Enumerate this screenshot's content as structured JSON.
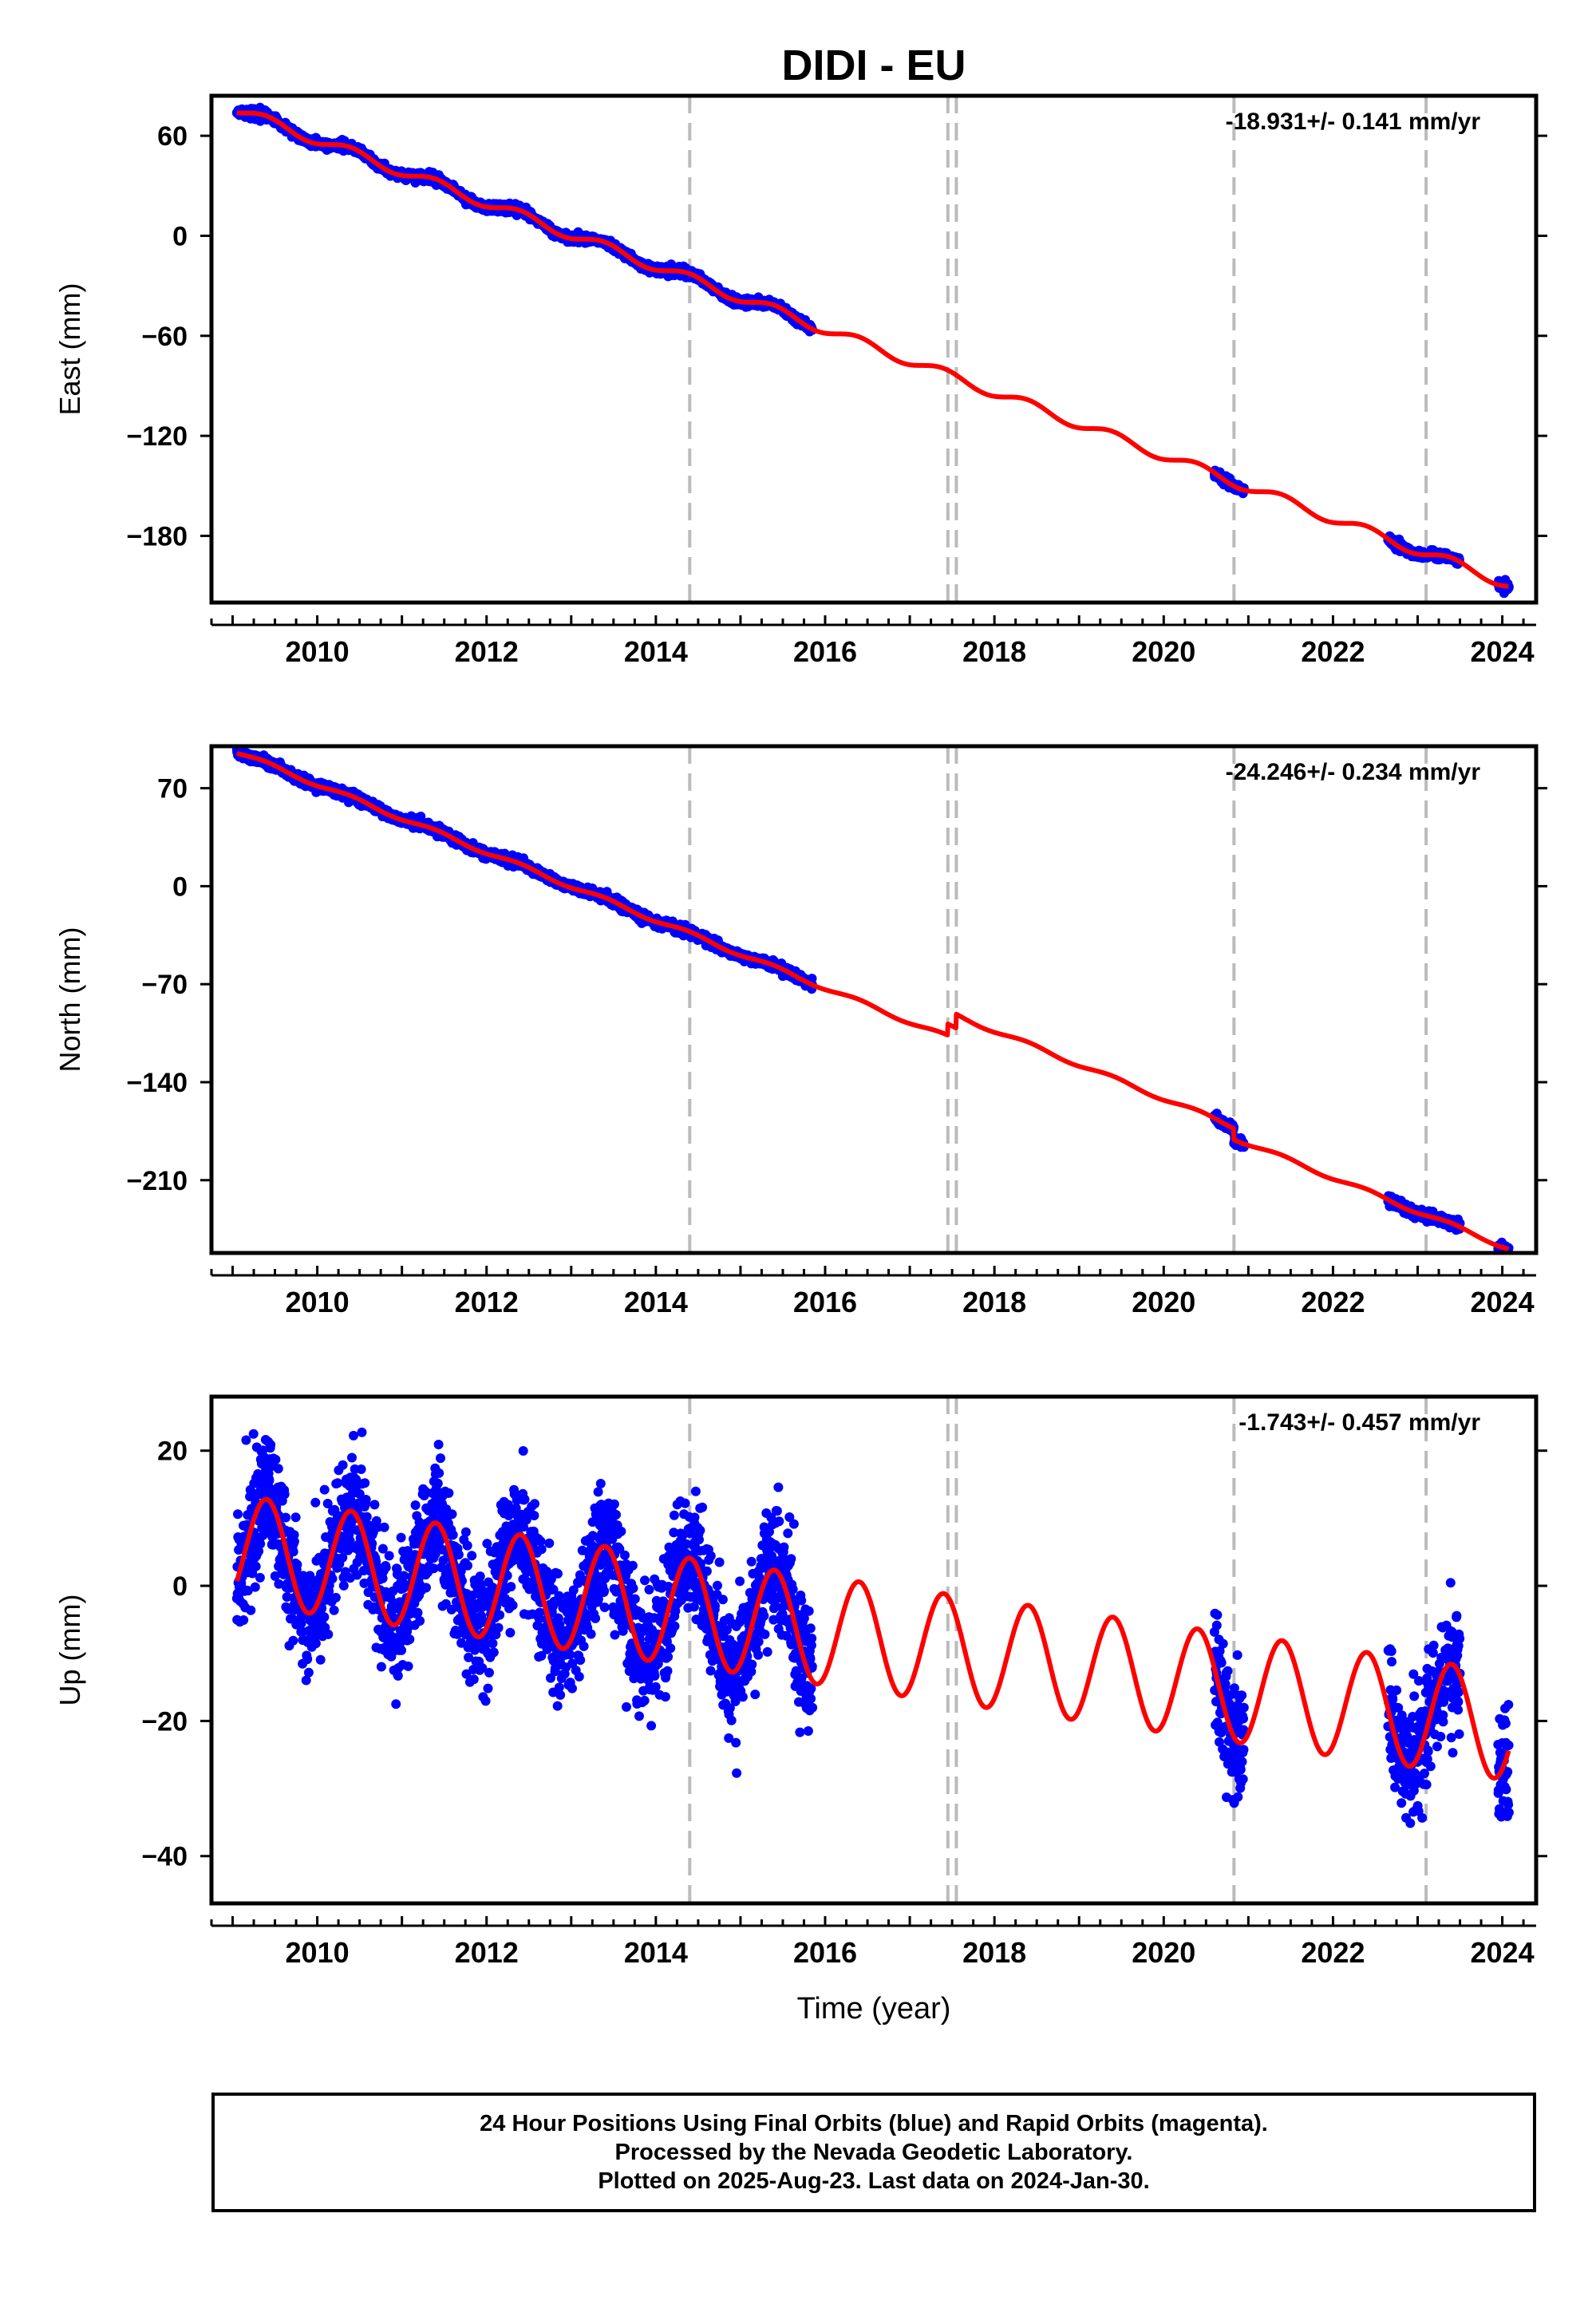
{
  "title": "DIDI - EU",
  "colors": {
    "observations": "#0000ff",
    "model": "#ff0000",
    "breaks": "#bbbbbb",
    "frame": "#000000"
  },
  "chart_data": [
    {
      "type": "scatter",
      "component": "East",
      "ylabel": "East (mm)",
      "xlabel": "",
      "rate_label": "-18.931+/- 0.141 mm/yr",
      "xlim": [
        2008.75,
        2024.4
      ],
      "ylim": [
        -220,
        84
      ],
      "yticks": [
        60,
        0,
        -60,
        -120,
        -180
      ],
      "xticks": [
        2010,
        2012,
        2014,
        2016,
        2018,
        2020,
        2022,
        2024
      ],
      "breaks": [
        2014.4,
        2017.45,
        2017.55,
        2020.83,
        2023.1
      ],
      "observation_intervals": [
        [
          2009.05,
          2015.85
        ],
        [
          2020.6,
          2020.95
        ],
        [
          2022.65,
          2023.5
        ],
        [
          2023.95,
          2024.08
        ]
      ],
      "model": {
        "intercept_2009": 76.5,
        "rate_mm_per_yr": -18.931,
        "annual_amplitude": 3.0,
        "steps": []
      },
      "noise_mm": 1.2
    },
    {
      "type": "scatter",
      "component": "North",
      "ylabel": "North (mm)",
      "xlabel": "",
      "rate_label": "-24.246+/- 0.234 mm/yr",
      "xlim": [
        2008.75,
        2024.4
      ],
      "ylim": [
        -262,
        100
      ],
      "yticks": [
        70,
        0,
        -70,
        -140,
        -210
      ],
      "xticks": [
        2010,
        2012,
        2014,
        2016,
        2018,
        2020,
        2022,
        2024
      ],
      "breaks": [
        2014.4,
        2017.45,
        2017.55,
        2020.83,
        2023.1
      ],
      "observation_intervals": [
        [
          2009.05,
          2015.85
        ],
        [
          2020.6,
          2020.95
        ],
        [
          2022.65,
          2023.5
        ],
        [
          2023.95,
          2024.08
        ]
      ],
      "model": {
        "intercept_2009": 97,
        "rate_mm_per_yr": -24.246,
        "annual_amplitude": 1.5,
        "steps": [
          [
            2017.45,
            8
          ],
          [
            2017.55,
            10
          ],
          [
            2020.83,
            -8
          ]
        ]
      },
      "noise_mm": 1.6
    },
    {
      "type": "scatter",
      "component": "Up",
      "ylabel": "Up (mm)",
      "xlabel": "Time (year)",
      "rate_label": "-1.743+/- 0.457 mm/yr",
      "xlim": [
        2008.75,
        2024.4
      ],
      "ylim": [
        -47,
        28
      ],
      "yticks": [
        20,
        0,
        -20,
        -40
      ],
      "xticks": [
        2010,
        2012,
        2014,
        2016,
        2018,
        2020,
        2022,
        2024
      ],
      "breaks": [
        2014.4,
        2017.45,
        2017.55,
        2020.83,
        2023.1
      ],
      "observation_intervals": [
        [
          2009.05,
          2015.85
        ],
        [
          2020.6,
          2020.95
        ],
        [
          2022.65,
          2023.5
        ],
        [
          2023.95,
          2024.08
        ]
      ],
      "model": {
        "intercept_2009": 5.5,
        "rate_mm_per_yr": -1.743,
        "annual_amplitude": 8.0,
        "steps": []
      },
      "noise_mm": 4.5
    }
  ],
  "footer": {
    "line1": "24 Hour Positions Using Final Orbits (blue) and Rapid Orbits (magenta).",
    "line2": "Processed by the Nevada Geodetic Laboratory.",
    "line3": "Plotted on 2025-Aug-23. Last data on 2024-Jan-30."
  }
}
